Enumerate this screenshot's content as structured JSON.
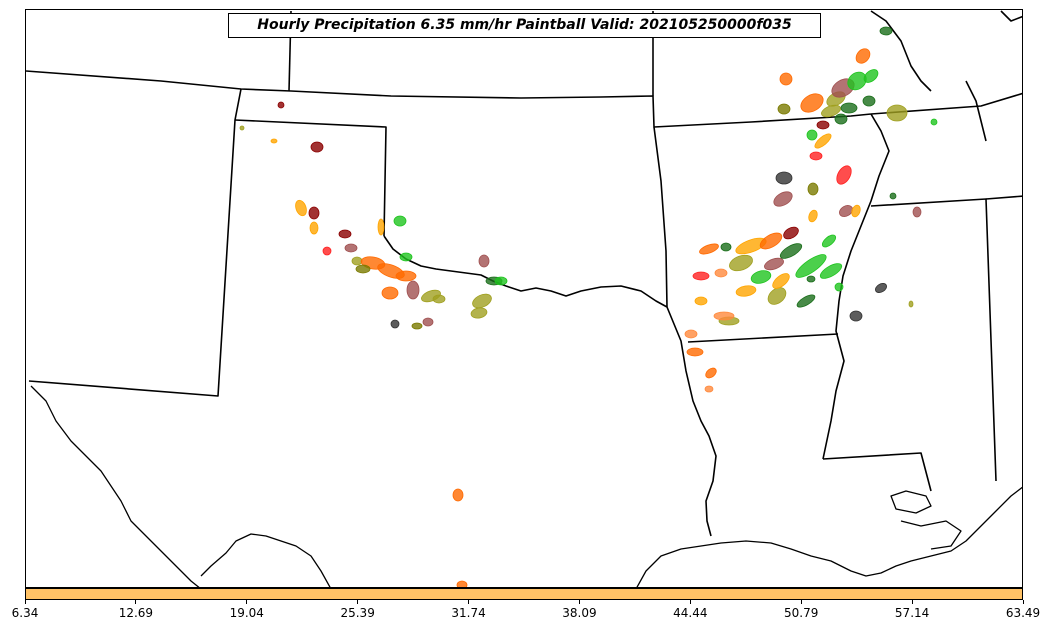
{
  "title": "Hourly Precipitation 6.35 mm/hr Paintball Valid: 202105250000f035",
  "colorbar": {
    "color": "#ffc266",
    "ticks": [
      "6.34",
      "12.69",
      "19.04",
      "25.39",
      "31.74",
      "38.09",
      "44.44",
      "50.79",
      "57.14",
      "63.49"
    ]
  },
  "member_colors": [
    "#ff6a00",
    "#ffa500",
    "#1fc41f",
    "#1a6e1a",
    "#a0a020",
    "#7a7a00",
    "#8b0000",
    "#a05050",
    "#333333",
    "#ff2020",
    "#ff8a3d"
  ]
}
